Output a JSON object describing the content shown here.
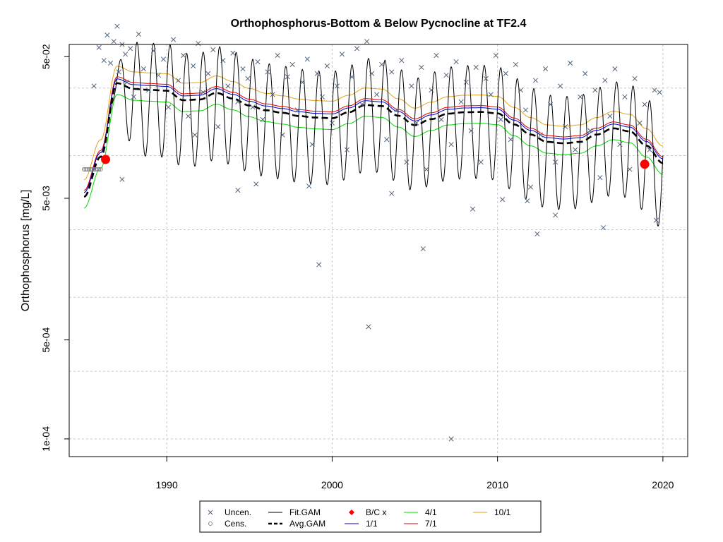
{
  "chart_data": {
    "type": "line",
    "title": "Orthophosphorus-Bottom & Below Pycnocline at TF2.4",
    "xlabel": "",
    "ylabel": "Orthophosphorus [mg/L]",
    "y_scale": "log10",
    "xlim": [
      1984.1,
      2021.5
    ],
    "ylim_log10": [
      -4.125,
      -1.215
    ],
    "x_ticks": [
      1990,
      2000,
      2010,
      2020
    ],
    "x_tick_labels": [
      "1990",
      "2000",
      "2010",
      "2020"
    ],
    "y_ticks": [
      0.0001,
      0.0005,
      0.005,
      0.05
    ],
    "y_tick_labels": [
      "1e-04",
      "5e-04",
      "5e-03",
      "5e-02"
    ],
    "grid_x": [
      1990,
      2000,
      2010,
      2020
    ],
    "grid_y": [
      0.0001,
      0.0003,
      0.001,
      0.003,
      0.01,
      0.03
    ],
    "baseline": {
      "x": [
        1985.0,
        1986.0,
        1987.0,
        1988.0,
        1989.0,
        1990.0,
        1991.0,
        1992.0,
        1993.0,
        1994.0,
        1995.0,
        1996.0,
        1997.0,
        1998.0,
        1999.0,
        2000.0,
        2001.0,
        2002.0,
        2003.0,
        2004.0,
        2005.0,
        2006.0,
        2007.0,
        2008.0,
        2009.0,
        2010.0,
        2011.0,
        2012.0,
        2013.0,
        2014.0,
        2015.0,
        2016.0,
        2017.0,
        2018.0,
        2019.0,
        2020.0
      ],
      "y": [
        0.0055,
        0.0105,
        0.0348,
        0.0317,
        0.0312,
        0.0308,
        0.0264,
        0.0267,
        0.0297,
        0.0271,
        0.0242,
        0.0224,
        0.0215,
        0.0204,
        0.0199,
        0.0197,
        0.0217,
        0.0244,
        0.024,
        0.0205,
        0.0176,
        0.0194,
        0.0212,
        0.0217,
        0.0218,
        0.0213,
        0.0178,
        0.0151,
        0.0134,
        0.0131,
        0.0134,
        0.0151,
        0.0167,
        0.0159,
        0.0126,
        0.0095
      ]
    },
    "series": [
      {
        "name": "Fit.GAM",
        "color": "#000000",
        "style": "solid",
        "seasonal_amplitude_log10": 0.4
      },
      {
        "name": "Avg.GAM",
        "color": "#000000",
        "style": "dashed",
        "offset_log10": -0.03
      },
      {
        "name": "1/1",
        "color": "#0000CC",
        "style": "solid",
        "offset_log10": 0.0
      },
      {
        "name": "4/1",
        "color": "#00DD00",
        "style": "solid",
        "offset_log10": -0.11
      },
      {
        "name": "7/1",
        "color": "#DD0000",
        "style": "solid",
        "offset_log10": 0.015
      },
      {
        "name": "10/1",
        "color": "#E8A317",
        "style": "solid",
        "offset_log10": 0.09
      }
    ],
    "bc_points": {
      "name": "B/C x",
      "color": "#FF0000",
      "points": [
        {
          "x": 1986.3,
          "y": 0.0094
        },
        {
          "x": 2018.9,
          "y": 0.0087
        }
      ]
    },
    "censored": {
      "name": "Cens.",
      "y": 0.008,
      "x": [
        1985.0,
        1985.1,
        1985.2,
        1985.3,
        1985.4,
        1985.5,
        1985.6,
        1985.7,
        1985.8,
        1985.9,
        1986.0
      ]
    },
    "uncensored_points": {
      "name": "Uncen.",
      "color": "#50637A",
      "x": [
        1985.6,
        1985.9,
        1986.2,
        1986.4,
        1986.6,
        1986.8,
        1987.0,
        1987.1,
        1987.3,
        1987.5,
        1987.6,
        1987.8,
        1988.0,
        1988.3,
        1988.6,
        1988.9,
        1989.2,
        1989.5,
        1989.8,
        1990.1,
        1990.4,
        1990.7,
        1991.0,
        1991.3,
        1991.6,
        1991.9,
        1992.2,
        1992.5,
        1992.8,
        1993.1,
        1993.4,
        1993.7,
        1994.0,
        1994.3,
        1994.6,
        1994.9,
        1995.2,
        1995.5,
        1995.8,
        1996.1,
        1996.4,
        1996.7,
        1997.0,
        1997.3,
        1997.6,
        1997.9,
        1998.2,
        1998.5,
        1998.8,
        1999.1,
        1999.4,
        1999.7,
        2000.0,
        2000.3,
        2000.6,
        2000.9,
        2001.2,
        2001.5,
        2001.8,
        2002.1,
        2002.4,
        2002.7,
        2003.0,
        2003.3,
        2003.6,
        2003.9,
        2004.2,
        2004.5,
        2004.8,
        2005.1,
        2005.4,
        2005.7,
        2006.0,
        2006.3,
        2006.6,
        2006.9,
        2007.2,
        2007.5,
        2007.8,
        2008.1,
        2008.4,
        2008.7,
        2009.0,
        2009.3,
        2009.6,
        2009.9,
        2010.2,
        2010.5,
        2010.8,
        2011.1,
        2011.4,
        2011.7,
        2012.0,
        2012.3,
        2012.6,
        2012.9,
        2013.2,
        2013.5,
        2013.8,
        2014.1,
        2014.4,
        2014.7,
        2015.0,
        2015.3,
        2015.6,
        2015.9,
        2016.2,
        2016.5,
        2016.8,
        2017.1,
        2017.4,
        2017.7,
        2018.0,
        2018.3,
        2018.6,
        2018.9,
        2019.2,
        2019.5,
        2019.8,
        1987.3,
        1991.7,
        1994.3,
        1999.2,
        2002.2,
        2005.5,
        2007.2,
        2013.5,
        2016.4,
        2012.4,
        2019.6,
        1998.6,
        2003.6,
        2008.5,
        2010.3,
        1995.4,
        2011.8
      ],
      "y": [
        0.031,
        0.058,
        0.047,
        0.071,
        0.045,
        0.064,
        0.082,
        0.039,
        0.061,
        0.052,
        0.033,
        0.057,
        0.026,
        0.072,
        0.041,
        0.029,
        0.055,
        0.037,
        0.048,
        0.022,
        0.066,
        0.034,
        0.051,
        0.019,
        0.043,
        0.062,
        0.028,
        0.038,
        0.056,
        0.016,
        0.047,
        0.031,
        0.053,
        0.024,
        0.041,
        0.035,
        0.022,
        0.046,
        0.018,
        0.039,
        0.027,
        0.051,
        0.014,
        0.036,
        0.044,
        0.021,
        0.033,
        0.048,
        0.012,
        0.038,
        0.026,
        0.043,
        0.017,
        0.031,
        0.052,
        0.011,
        0.036,
        0.057,
        0.023,
        0.064,
        0.038,
        0.027,
        0.044,
        0.013,
        0.039,
        0.021,
        0.047,
        0.009,
        0.031,
        0.017,
        0.042,
        0.008,
        0.029,
        0.051,
        0.018,
        0.037,
        0.012,
        0.046,
        0.024,
        0.033,
        0.015,
        0.042,
        0.009,
        0.035,
        0.027,
        0.051,
        0.018,
        0.038,
        0.013,
        0.044,
        0.029,
        0.021,
        0.006,
        0.034,
        0.014,
        0.041,
        0.023,
        0.009,
        0.031,
        0.016,
        0.045,
        0.011,
        0.026,
        0.038,
        0.015,
        0.029,
        0.007,
        0.034,
        0.019,
        0.041,
        0.012,
        0.026,
        0.008,
        0.035,
        0.017,
        0.023,
        0.011,
        0.029,
        0.028,
        0.0068,
        0.014,
        0.0057,
        0.0017,
        0.00062,
        0.0022,
        0.0001,
        0.0038,
        0.0031,
        0.0028,
        0.0035,
        0.0061,
        0.0054,
        0.0042,
        0.0049,
        0.0063,
        0.0048
      ]
    },
    "legend": {
      "position": "bottom-center",
      "entries": [
        {
          "label": "Uncen.",
          "symbol": "cross",
          "color": "#50637A"
        },
        {
          "label": "Fit.GAM",
          "symbol": "line",
          "color": "#000000"
        },
        {
          "label": "B/C x",
          "symbol": "diamond",
          "color": "#FF0000"
        },
        {
          "label": "4/1",
          "symbol": "line",
          "color": "#00DD00"
        },
        {
          "label": "10/1",
          "symbol": "line",
          "color": "#E8A317"
        },
        {
          "label": "Cens.",
          "symbol": "circle",
          "color": "#888888"
        },
        {
          "label": "Avg.GAM",
          "symbol": "dashed",
          "color": "#000000"
        },
        {
          "label": "1/1",
          "symbol": "line",
          "color": "#0000CC"
        },
        {
          "label": "7/1",
          "symbol": "line",
          "color": "#DD0000"
        }
      ]
    }
  }
}
